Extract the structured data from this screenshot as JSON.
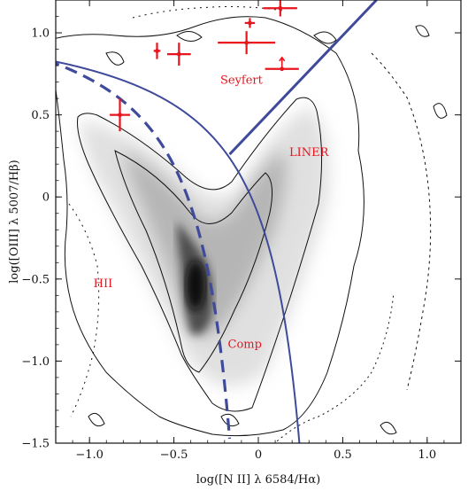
{
  "chart_data": {
    "type": "scatter",
    "title": "",
    "xlabel": "log([N II] λ 6584/Hα)",
    "ylabel": "log([OIII] λ 5007/Hβ)",
    "xlim": [
      -1.2,
      1.2
    ],
    "ylim": [
      -1.5,
      1.2
    ],
    "x_ticks": [
      -1.0,
      -0.5,
      0,
      0.5,
      1.0
    ],
    "x_tick_labels": [
      "−1.0",
      "−0.5",
      "0",
      "0.5",
      "1.0"
    ],
    "y_ticks": [
      1.0,
      0.5,
      0,
      -0.5,
      -1.0,
      -1.5
    ],
    "y_tick_labels": [
      "1.0",
      "0.5",
      "0",
      "−0.5",
      "−1.0",
      "−1.5"
    ],
    "region_labels": [
      {
        "text": "Seyfert",
        "x": -0.1,
        "y": 0.69
      },
      {
        "text": "LINER",
        "x": 0.3,
        "y": 0.25
      },
      {
        "text": "HII",
        "x": -0.92,
        "y": -0.55
      },
      {
        "text": "Comp",
        "x": -0.08,
        "y": -0.92
      }
    ],
    "lines": [
      {
        "name": "Kewley et al. (2001) maximum starburst",
        "style": "solid",
        "formula": "0.61/(x-0.47)+1.19"
      },
      {
        "name": "Kauffmann et al. (2003) empirical",
        "style": "dashed",
        "formula": "0.61/(x-0.05)+1.3"
      },
      {
        "name": "Seyfert/LINER division",
        "style": "solid",
        "points": [
          [
            -0.17,
            0.26
          ],
          [
            0.7,
            1.2
          ]
        ]
      }
    ],
    "series": [
      {
        "name": "red sources with error bars",
        "color": "#e8141e",
        "points": [
          {
            "x": -0.6,
            "y": 0.89,
            "xerr": 0.02,
            "yerr": 0.05
          },
          {
            "x": -0.47,
            "y": 0.87,
            "xerr": 0.07,
            "yerr": 0.07
          },
          {
            "x": -0.82,
            "y": 0.5,
            "xerr": 0.06,
            "yerr": 0.1
          },
          {
            "x": -0.07,
            "y": 0.94,
            "xerr": 0.17,
            "yerr": 0.07
          },
          {
            "x": -0.05,
            "y": 1.06,
            "xerr": 0.03,
            "yerr": 0.03
          },
          {
            "x": 0.14,
            "y": 0.78,
            "xerr": 0.1,
            "yerr": 0.07,
            "upper_limit": true
          },
          {
            "x": 0.13,
            "y": 1.15,
            "xerr": 0.1,
            "yerr": 0.05
          }
        ]
      }
    ],
    "density": "grayscale 2D histogram of SDSS galaxies with contour levels",
    "colors": {
      "lines": "#3f4a9a",
      "points": "#e8141e",
      "label": "#e8141e"
    }
  }
}
